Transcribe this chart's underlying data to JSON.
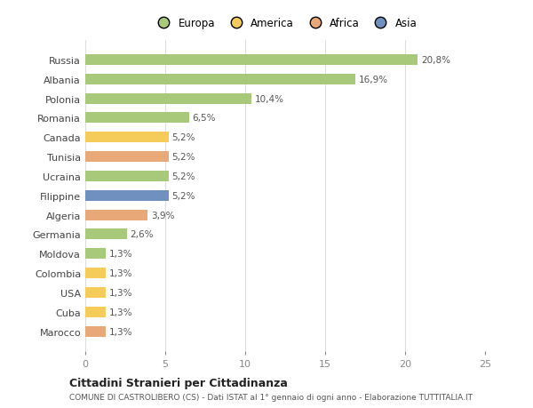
{
  "countries": [
    "Russia",
    "Albania",
    "Polonia",
    "Romania",
    "Canada",
    "Tunisia",
    "Ucraina",
    "Filippine",
    "Algeria",
    "Germania",
    "Moldova",
    "Colombia",
    "USA",
    "Cuba",
    "Marocco"
  ],
  "values": [
    20.8,
    16.9,
    10.4,
    6.5,
    5.2,
    5.2,
    5.2,
    5.2,
    3.9,
    2.6,
    1.3,
    1.3,
    1.3,
    1.3,
    1.3
  ],
  "labels": [
    "20,8%",
    "16,9%",
    "10,4%",
    "6,5%",
    "5,2%",
    "5,2%",
    "5,2%",
    "5,2%",
    "3,9%",
    "2,6%",
    "1,3%",
    "1,3%",
    "1,3%",
    "1,3%",
    "1,3%"
  ],
  "continents": [
    "Europa",
    "Europa",
    "Europa",
    "Europa",
    "America",
    "Africa",
    "Europa",
    "Asia",
    "Africa",
    "Europa",
    "Europa",
    "America",
    "America",
    "America",
    "Africa"
  ],
  "colors": {
    "Europa": "#a8c87a",
    "America": "#f5cc5a",
    "Africa": "#e8a878",
    "Asia": "#7090c0"
  },
  "xlim": [
    0,
    25
  ],
  "xticks": [
    0,
    5,
    10,
    15,
    20,
    25
  ],
  "title": "Cittadini Stranieri per Cittadinanza",
  "subtitle": "COMUNE DI CASTROLIBERO (CS) - Dati ISTAT al 1° gennaio di ogni anno - Elaborazione TUTTITALIA.IT",
  "background_color": "#ffffff",
  "grid_color": "#dddddd",
  "legend_order": [
    "Europa",
    "America",
    "Africa",
    "Asia"
  ]
}
